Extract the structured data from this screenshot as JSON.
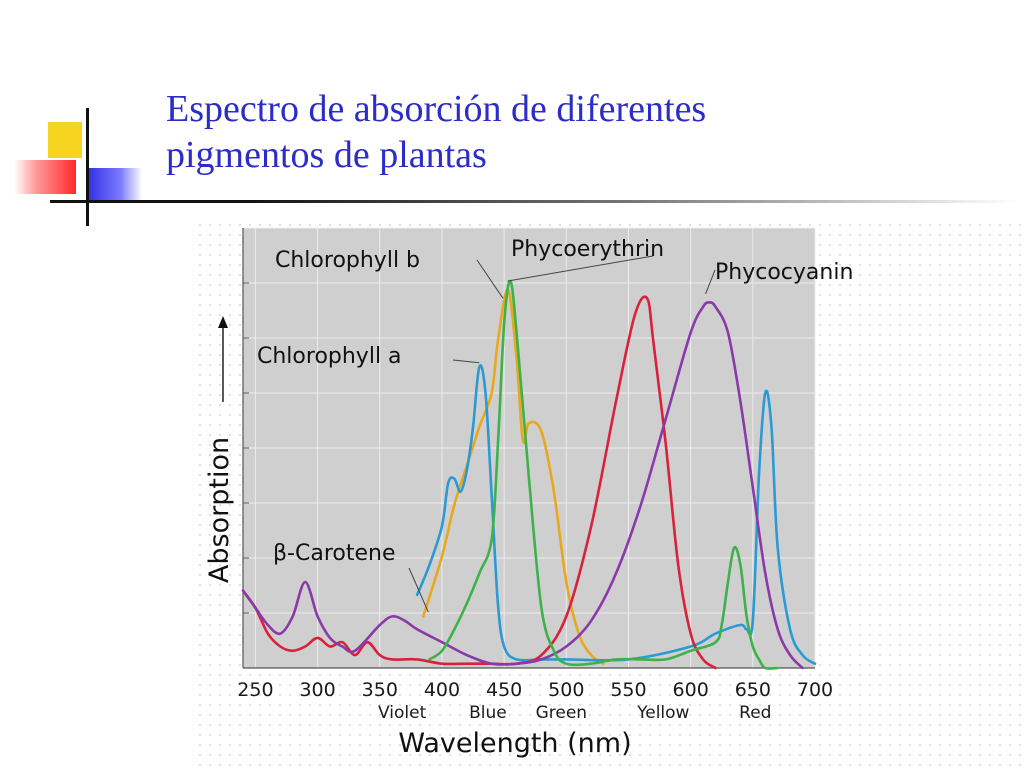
{
  "slide": {
    "title_line1": "Espectro de absorción de diferentes",
    "title_line2": "pigmentos de plantas"
  },
  "colors": {
    "title": "#2c2cc8",
    "plot_background": "#cfcfcf"
  },
  "chart_data": {
    "type": "line",
    "xlabel": "Wavelength (nm)",
    "ylabel": "Absorption",
    "xlim": [
      240,
      700
    ],
    "ylim": [
      0,
      1
    ],
    "x_ticks": [
      250,
      300,
      350,
      400,
      450,
      500,
      550,
      600,
      650,
      700
    ],
    "grid": true,
    "color_bands": [
      "Violet",
      "Blue",
      "Green",
      "Yellow",
      "Red"
    ],
    "series": [
      {
        "name": "Chlorophyll b",
        "color": "#e8a81c",
        "x": [
          385,
          400,
          410,
          420,
          430,
          440,
          445,
          453,
          460,
          465,
          470,
          480,
          490,
          500,
          510,
          520,
          530
        ],
        "y": [
          0.12,
          0.26,
          0.38,
          0.47,
          0.56,
          0.64,
          0.76,
          0.88,
          0.72,
          0.53,
          0.57,
          0.55,
          0.41,
          0.2,
          0.08,
          0.03,
          0.01
        ]
      },
      {
        "name": "Chlorophyll a",
        "color": "#2b9ad4",
        "x": [
          380,
          390,
          400,
          405,
          410,
          415,
          420,
          425,
          430,
          435,
          440,
          445,
          450,
          460,
          480,
          500,
          550,
          600,
          620,
          640,
          645,
          650,
          655,
          660,
          665,
          670,
          680,
          690,
          700
        ],
        "y": [
          0.17,
          0.24,
          0.33,
          0.43,
          0.44,
          0.41,
          0.46,
          0.56,
          0.7,
          0.64,
          0.4,
          0.15,
          0.05,
          0.02,
          0.02,
          0.02,
          0.02,
          0.05,
          0.08,
          0.1,
          0.09,
          0.11,
          0.45,
          0.64,
          0.56,
          0.28,
          0.09,
          0.03,
          0.01
        ]
      },
      {
        "name": "Phycoerythrin",
        "color": "#d8223a",
        "x": [
          240,
          250,
          260,
          270,
          280,
          290,
          300,
          310,
          320,
          330,
          340,
          350,
          360,
          380,
          400,
          420,
          440,
          460,
          480,
          500,
          520,
          540,
          555,
          565,
          570,
          580,
          590,
          600,
          610,
          620
        ],
        "y": [
          0.18,
          0.14,
          0.08,
          0.05,
          0.04,
          0.05,
          0.07,
          0.05,
          0.06,
          0.03,
          0.06,
          0.03,
          0.02,
          0.02,
          0.01,
          0.01,
          0.01,
          0.01,
          0.03,
          0.12,
          0.33,
          0.62,
          0.82,
          0.86,
          0.76,
          0.52,
          0.24,
          0.08,
          0.02,
          0.0
        ]
      },
      {
        "name": "Phycocyanin",
        "color": "#8a3aa8",
        "x": [
          240,
          250,
          260,
          270,
          280,
          290,
          300,
          310,
          320,
          330,
          350,
          360,
          370,
          380,
          400,
          420,
          440,
          460,
          480,
          500,
          520,
          540,
          560,
          580,
          600,
          610,
          615,
          620,
          630,
          640,
          650,
          660,
          670,
          680,
          690
        ],
        "y": [
          0.18,
          0.14,
          0.1,
          0.08,
          0.12,
          0.2,
          0.12,
          0.07,
          0.05,
          0.04,
          0.1,
          0.12,
          0.11,
          0.09,
          0.06,
          0.03,
          0.01,
          0.01,
          0.02,
          0.05,
          0.11,
          0.22,
          0.38,
          0.58,
          0.78,
          0.84,
          0.85,
          0.84,
          0.78,
          0.62,
          0.42,
          0.22,
          0.09,
          0.03,
          0.0
        ]
      },
      {
        "name": "β-Carotene",
        "color": "#3db24a",
        "x": [
          390,
          400,
          410,
          420,
          430,
          440,
          445,
          450,
          455,
          460,
          470,
          480,
          490,
          500,
          520,
          540,
          560,
          580,
          600,
          620,
          625,
          630,
          635,
          640,
          645,
          650,
          655,
          660,
          670
        ],
        "y": [
          0.02,
          0.04,
          0.09,
          0.15,
          0.22,
          0.3,
          0.52,
          0.8,
          0.9,
          0.78,
          0.44,
          0.14,
          0.04,
          0.01,
          0.01,
          0.02,
          0.02,
          0.02,
          0.04,
          0.06,
          0.1,
          0.2,
          0.28,
          0.24,
          0.12,
          0.05,
          0.02,
          0.0,
          0.0
        ]
      }
    ],
    "annotations": [
      {
        "text": "Chlorophyll b",
        "points_to": "Chlorophyll b peak near 455 nm"
      },
      {
        "text": "Phycoerythrin",
        "points_to": "Phycoerythrin peak near 565 nm"
      },
      {
        "text": "Phycocyanin",
        "points_to": "Phycocyanin peak near 615 nm"
      },
      {
        "text": "Chlorophyll a",
        "points_to": "Chlorophyll a peak near 430 nm"
      },
      {
        "text": "β-Carotene",
        "points_to": "β-Carotene curve near 390 nm"
      }
    ]
  }
}
